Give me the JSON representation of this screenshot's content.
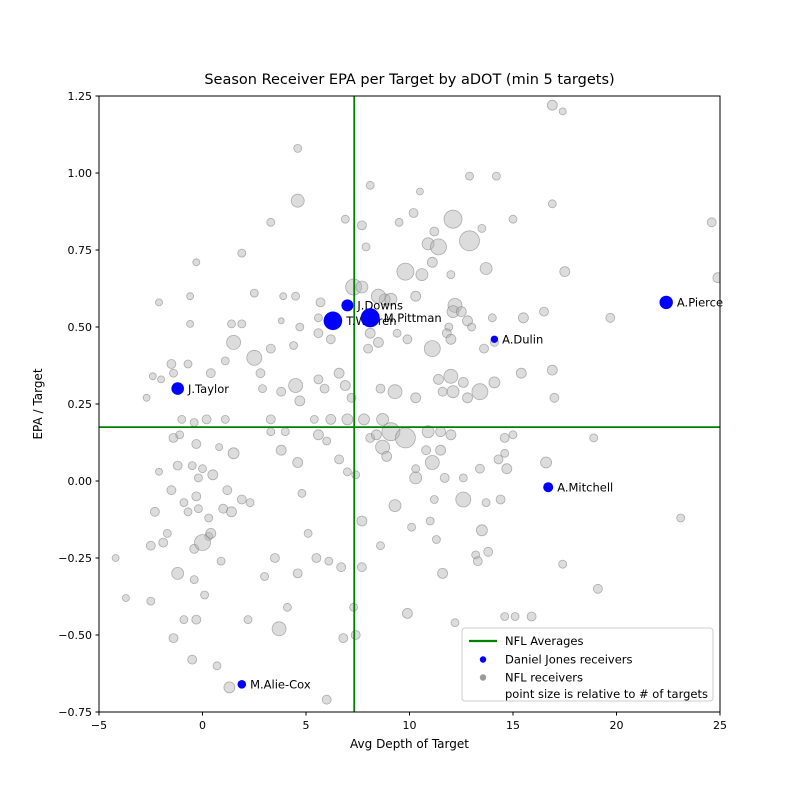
{
  "chart_data": {
    "type": "scatter",
    "title": "Season Receiver EPA per Target by aDOT (min 5 targets)",
    "xlabel": "Avg Depth of Target",
    "ylabel": "EPA / Target",
    "xlim": [
      -5,
      25
    ],
    "ylim": [
      -0.75,
      1.25
    ],
    "grid": false,
    "xticks": [
      {
        "v": -5,
        "label": "−5"
      },
      {
        "v": 0,
        "label": "0"
      },
      {
        "v": 5,
        "label": "5"
      },
      {
        "v": 10,
        "label": "10"
      },
      {
        "v": 15,
        "label": "15"
      },
      {
        "v": 20,
        "label": "20"
      },
      {
        "v": 25,
        "label": "25"
      }
    ],
    "yticks": [
      {
        "v": -0.75,
        "label": "−0.75"
      },
      {
        "v": -0.5,
        "label": "−0.50"
      },
      {
        "v": -0.25,
        "label": "−0.25"
      },
      {
        "v": 0,
        "label": "0.00"
      },
      {
        "v": 0.25,
        "label": "0.25"
      },
      {
        "v": 0.5,
        "label": "0.50"
      },
      {
        "v": 0.75,
        "label": "0.75"
      },
      {
        "v": 1.0,
        "label": "1.00"
      },
      {
        "v": 1.25,
        "label": "1.25"
      }
    ],
    "nfl_averages": {
      "adot": 7.33,
      "epa_per_target": 0.175
    },
    "size_note": "point size is relative to # of targets",
    "daniel_jones_receivers": [
      {
        "name": "J.Downs",
        "x": 7.0,
        "y": 0.57,
        "r": 6
      },
      {
        "name": "T.Warren",
        "x": 6.3,
        "y": 0.52,
        "r": 9.3
      },
      {
        "name": "M.Pittman",
        "x": 8.1,
        "y": 0.53,
        "r": 9.5
      },
      {
        "name": "A.Dulin",
        "x": 14.1,
        "y": 0.46,
        "r": 3.7
      },
      {
        "name": "A.Pierce",
        "x": 22.4,
        "y": 0.58,
        "r": 6.7
      },
      {
        "name": "J.Taylor",
        "x": -1.2,
        "y": 0.3,
        "r": 6.3
      },
      {
        "name": "A.Mitchell",
        "x": 16.7,
        "y": -0.02,
        "r": 5
      },
      {
        "name": "M.Alie-Cox",
        "x": 1.9,
        "y": -0.66,
        "r": 4.3
      }
    ],
    "nfl_receivers": [
      [
        16.9,
        1.22,
        5
      ],
      [
        17.4,
        1.2,
        3.5
      ],
      [
        4.6,
        1.08,
        4
      ],
      [
        12.9,
        0.99,
        4
      ],
      [
        14.2,
        0.99,
        4
      ],
      [
        8.1,
        0.96,
        4
      ],
      [
        10.5,
        0.94,
        3.5
      ],
      [
        4.6,
        0.91,
        6.5
      ],
      [
        16.9,
        0.9,
        4
      ],
      [
        10.2,
        0.87,
        4.5
      ],
      [
        6.9,
        0.85,
        4
      ],
      [
        12.1,
        0.85,
        9
      ],
      [
        15.0,
        0.85,
        4
      ],
      [
        24.6,
        0.84,
        4.5
      ],
      [
        9.5,
        0.84,
        4
      ],
      [
        3.3,
        0.84,
        4
      ],
      [
        7.7,
        0.83,
        4.5
      ],
      [
        13.5,
        0.82,
        4
      ],
      [
        11.2,
        0.81,
        4.5
      ],
      [
        12.9,
        0.78,
        10
      ],
      [
        10.9,
        0.77,
        6
      ],
      [
        11.4,
        0.76,
        8
      ],
      [
        7.9,
        0.76,
        4
      ],
      [
        1.9,
        0.74,
        4
      ],
      [
        -0.3,
        0.71,
        3.5
      ],
      [
        11.1,
        0.71,
        5
      ],
      [
        13.7,
        0.69,
        6
      ],
      [
        9.8,
        0.68,
        8.5
      ],
      [
        17.5,
        0.68,
        5
      ],
      [
        10.6,
        0.67,
        6
      ],
      [
        12.0,
        0.67,
        4
      ],
      [
        24.9,
        0.66,
        5
      ],
      [
        7.3,
        0.63,
        8
      ],
      [
        7.7,
        0.63,
        6
      ],
      [
        2.5,
        0.61,
        4
      ],
      [
        3.9,
        0.6,
        3.5
      ],
      [
        4.5,
        0.6,
        4
      ],
      [
        8.8,
        0.59,
        5.5
      ],
      [
        10.3,
        0.6,
        5
      ],
      [
        8.5,
        0.6,
        7
      ],
      [
        9.1,
        0.59,
        6
      ],
      [
        -2.1,
        0.58,
        3.5
      ],
      [
        5.7,
        0.58,
        4.5
      ],
      [
        -0.6,
        0.6,
        3.5
      ],
      [
        12.2,
        0.57,
        7
      ],
      [
        12.1,
        0.55,
        6
      ],
      [
        12.5,
        0.55,
        5
      ],
      [
        16.5,
        0.55,
        4.5
      ],
      [
        5.6,
        0.53,
        4
      ],
      [
        14.0,
        0.53,
        4
      ],
      [
        15.5,
        0.53,
        5
      ],
      [
        19.7,
        0.53,
        4.5
      ],
      [
        12.8,
        0.52,
        5
      ],
      [
        -0.6,
        0.51,
        3.5
      ],
      [
        1.4,
        0.51,
        4
      ],
      [
        1.9,
        0.51,
        4
      ],
      [
        3.8,
        0.52,
        3
      ],
      [
        4.7,
        0.5,
        4
      ],
      [
        11.9,
        0.5,
        4
      ],
      [
        13.0,
        0.5,
        4
      ],
      [
        5.6,
        0.48,
        4.5
      ],
      [
        8.1,
        0.48,
        5
      ],
      [
        11.8,
        0.48,
        4.5
      ],
      [
        6.2,
        0.46,
        4.5
      ],
      [
        12.0,
        0.46,
        5
      ],
      [
        9.4,
        0.48,
        4
      ],
      [
        9.9,
        0.46,
        4.5
      ],
      [
        8.5,
        0.45,
        5
      ],
      [
        1.5,
        0.45,
        7
      ],
      [
        14.1,
        0.45,
        4
      ],
      [
        4.4,
        0.44,
        4
      ],
      [
        3.3,
        0.43,
        4.5
      ],
      [
        8.0,
        0.43,
        4.5
      ],
      [
        11.1,
        0.43,
        8
      ],
      [
        13.6,
        0.43,
        4.5
      ],
      [
        2.5,
        0.4,
        7.5
      ],
      [
        -0.7,
        0.38,
        4
      ],
      [
        -1.5,
        0.38,
        4.5
      ],
      [
        1.1,
        0.39,
        4
      ],
      [
        2.8,
        0.35,
        4.5
      ],
      [
        -2.4,
        0.34,
        3.5
      ],
      [
        -2.0,
        0.33,
        3.5
      ],
      [
        -1.4,
        0.35,
        4
      ],
      [
        0.4,
        0.35,
        4.5
      ],
      [
        6.6,
        0.35,
        5
      ],
      [
        15.4,
        0.35,
        5
      ],
      [
        16.9,
        0.36,
        5
      ],
      [
        5.6,
        0.33,
        4.5
      ],
      [
        11.4,
        0.33,
        5
      ],
      [
        12.0,
        0.34,
        7
      ],
      [
        12.6,
        0.32,
        5
      ],
      [
        14.1,
        0.32,
        5.5
      ],
      [
        2.9,
        0.3,
        4
      ],
      [
        3.8,
        0.29,
        4.5
      ],
      [
        4.5,
        0.31,
        7
      ],
      [
        5.9,
        0.3,
        4.5
      ],
      [
        6.9,
        0.31,
        5
      ],
      [
        8.6,
        0.3,
        4.5
      ],
      [
        9.3,
        0.29,
        7
      ],
      [
        12.1,
        0.29,
        6
      ],
      [
        13.4,
        0.29,
        8
      ],
      [
        11.6,
        0.29,
        4.5
      ],
      [
        -2.7,
        0.27,
        3.5
      ],
      [
        4.7,
        0.26,
        5
      ],
      [
        7.2,
        0.27,
        4.5
      ],
      [
        10.3,
        0.27,
        5
      ],
      [
        12.8,
        0.27,
        5
      ],
      [
        17.0,
        0.27,
        4.5
      ],
      [
        -1.0,
        0.2,
        4
      ],
      [
        -0.4,
        0.19,
        4
      ],
      [
        0.2,
        0.2,
        4.5
      ],
      [
        1.1,
        0.2,
        4
      ],
      [
        3.3,
        0.2,
        4.5
      ],
      [
        5.4,
        0.2,
        4
      ],
      [
        6.2,
        0.2,
        5
      ],
      [
        7.0,
        0.2,
        5.5
      ],
      [
        7.8,
        0.2,
        5.5
      ],
      [
        8.7,
        0.2,
        6
      ],
      [
        9.1,
        0.16,
        9
      ],
      [
        9.8,
        0.14,
        10
      ],
      [
        10.9,
        0.16,
        6
      ],
      [
        11.5,
        0.16,
        5
      ],
      [
        12.0,
        0.15,
        5
      ],
      [
        14.6,
        0.14,
        4.5
      ],
      [
        15.0,
        0.15,
        4
      ],
      [
        18.9,
        0.14,
        4
      ],
      [
        -1.4,
        0.14,
        4.5
      ],
      [
        -1.1,
        0.15,
        4
      ],
      [
        3.3,
        0.16,
        4
      ],
      [
        4.0,
        0.16,
        4
      ],
      [
        5.6,
        0.15,
        5
      ],
      [
        8.1,
        0.14,
        4.5
      ],
      [
        8.4,
        0.15,
        5
      ],
      [
        -0.3,
        0.12,
        4.5
      ],
      [
        0.8,
        0.11,
        3.5
      ],
      [
        1.5,
        0.09,
        5.5
      ],
      [
        3.8,
        0.1,
        5
      ],
      [
        6.0,
        0.13,
        4
      ],
      [
        8.7,
        0.11,
        7
      ],
      [
        10.8,
        0.1,
        4.5
      ],
      [
        11.5,
        0.1,
        5
      ],
      [
        4.6,
        0.06,
        5
      ],
      [
        6.6,
        0.07,
        4.5
      ],
      [
        8.9,
        0.08,
        5
      ],
      [
        11.1,
        0.06,
        7
      ],
      [
        14.3,
        0.07,
        4.5
      ],
      [
        14.6,
        0.09,
        4
      ],
      [
        16.6,
        0.06,
        5.5
      ],
      [
        -2.1,
        0.03,
        3.5
      ],
      [
        -1.2,
        0.05,
        4.5
      ],
      [
        -0.5,
        0.05,
        4
      ],
      [
        0.0,
        0.04,
        4
      ],
      [
        0.5,
        0.02,
        5
      ],
      [
        7.0,
        0.03,
        4
      ],
      [
        7.4,
        0.02,
        4
      ],
      [
        13.4,
        0.04,
        4.5
      ],
      [
        14.7,
        0.04,
        5
      ],
      [
        10.3,
        0.04,
        4
      ],
      [
        11.7,
        0.01,
        4.5
      ],
      [
        12.6,
        0.01,
        4
      ],
      [
        10.3,
        0.01,
        6
      ],
      [
        -0.2,
        0.01,
        4
      ],
      [
        1.2,
        -0.03,
        4.5
      ],
      [
        1.9,
        -0.06,
        4.5
      ],
      [
        2.3,
        -0.07,
        4
      ],
      [
        -1.5,
        -0.03,
        4.5
      ],
      [
        -0.9,
        -0.07,
        4
      ],
      [
        -0.7,
        -0.1,
        4
      ],
      [
        -0.3,
        -0.05,
        4.5
      ],
      [
        -0.2,
        -0.09,
        4
      ],
      [
        0.3,
        -0.12,
        4
      ],
      [
        1.0,
        -0.09,
        4.5
      ],
      [
        1.4,
        -0.1,
        5
      ],
      [
        -2.3,
        -0.1,
        4.5
      ],
      [
        4.8,
        -0.04,
        4
      ],
      [
        9.3,
        -0.08,
        6
      ],
      [
        11.2,
        -0.06,
        4
      ],
      [
        12.6,
        -0.06,
        7.5
      ],
      [
        13.7,
        -0.07,
        4
      ],
      [
        14.4,
        -0.06,
        4.5
      ],
      [
        23.1,
        -0.12,
        4
      ],
      [
        11.0,
        -0.13,
        4
      ],
      [
        7.7,
        -0.13,
        5
      ],
      [
        0.3,
        -0.18,
        4
      ],
      [
        -2.5,
        -0.21,
        4.5
      ],
      [
        -1.9,
        -0.2,
        4.5
      ],
      [
        -1.7,
        -0.17,
        4
      ],
      [
        -0.4,
        -0.22,
        4.5
      ],
      [
        0.0,
        -0.2,
        8
      ],
      [
        0.4,
        -0.17,
        5
      ],
      [
        0.9,
        -0.26,
        4
      ],
      [
        -4.2,
        -0.25,
        3.5
      ],
      [
        5.1,
        -0.17,
        4
      ],
      [
        3.5,
        -0.25,
        4.5
      ],
      [
        5.5,
        -0.25,
        4.5
      ],
      [
        6.1,
        -0.26,
        4
      ],
      [
        6.7,
        -0.28,
        4.5
      ],
      [
        7.7,
        -0.28,
        4.5
      ],
      [
        10.1,
        -0.15,
        4
      ],
      [
        11.3,
        -0.19,
        4
      ],
      [
        8.6,
        -0.21,
        4
      ],
      [
        13.2,
        -0.24,
        4
      ],
      [
        13.3,
        -0.26,
        4.5
      ],
      [
        13.8,
        -0.23,
        4.5
      ],
      [
        13.5,
        -0.16,
        5.5
      ],
      [
        17.4,
        -0.27,
        4
      ],
      [
        -3.7,
        -0.38,
        3.5
      ],
      [
        -2.5,
        -0.39,
        4
      ],
      [
        -1.2,
        -0.3,
        6
      ],
      [
        -0.4,
        -0.32,
        4
      ],
      [
        0.1,
        -0.37,
        4
      ],
      [
        -0.9,
        -0.45,
        4
      ],
      [
        -0.3,
        -0.45,
        4.5
      ],
      [
        2.2,
        -0.45,
        4
      ],
      [
        3.7,
        -0.48,
        7
      ],
      [
        3.0,
        -0.31,
        4
      ],
      [
        4.6,
        -0.3,
        4.5
      ],
      [
        4.1,
        -0.41,
        4
      ],
      [
        7.3,
        -0.41,
        4
      ],
      [
        9.9,
        -0.43,
        5
      ],
      [
        11.6,
        -0.3,
        5
      ],
      [
        12.2,
        -0.46,
        4
      ],
      [
        14.6,
        -0.44,
        4
      ],
      [
        15.1,
        -0.44,
        4
      ],
      [
        15.9,
        -0.44,
        4.5
      ],
      [
        19.1,
        -0.35,
        4.5
      ],
      [
        -1.4,
        -0.51,
        4.5
      ],
      [
        -0.5,
        -0.58,
        4.5
      ],
      [
        0.7,
        -0.6,
        4
      ],
      [
        1.3,
        -0.67,
        5.5
      ],
      [
        6.0,
        -0.71,
        4.5
      ],
      [
        6.8,
        -0.51,
        4.5
      ],
      [
        7.4,
        -0.5,
        4.5
      ]
    ]
  },
  "legend": {
    "items": [
      {
        "marker": "line",
        "label": "NFL Averages"
      },
      {
        "marker": "dot-blue",
        "label": "Daniel Jones receivers"
      },
      {
        "marker": "dot-gray",
        "label": "NFL receivers"
      },
      {
        "marker": "none",
        "label": "point size is relative to # of targets"
      }
    ]
  },
  "colors": {
    "avg_line": "#008000",
    "daniel_jones": "#0000ff",
    "nfl_fill": "rgba(178,178,178,0.45)",
    "nfl_stroke": "rgba(120,120,120,0.55)",
    "legend_gray": "#9a9a9a",
    "frame": "#000000",
    "legend_border": "#cccccc"
  }
}
